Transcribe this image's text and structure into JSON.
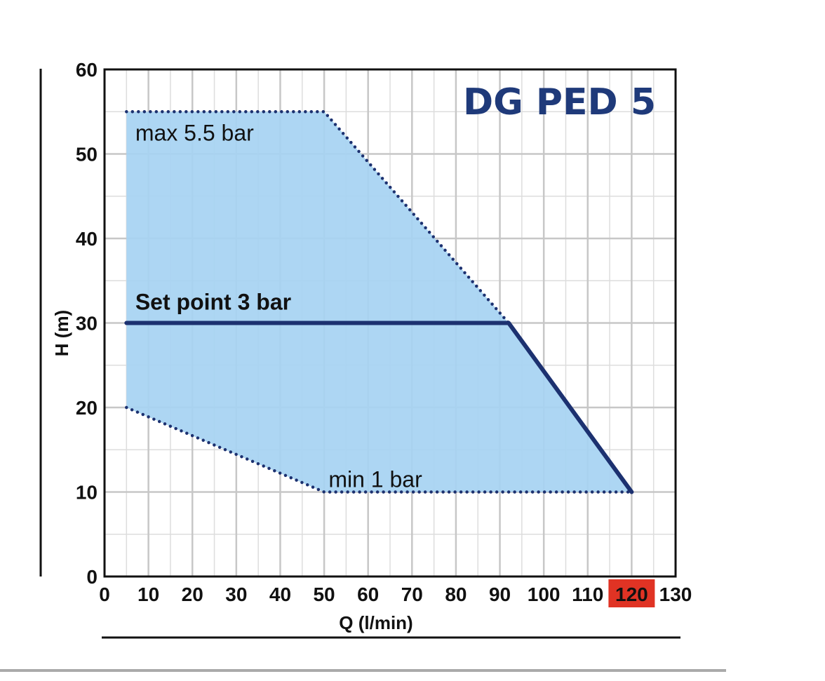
{
  "chart_data": {
    "type": "area",
    "title": "DG PED 5",
    "xlabel": "Q (l/min)",
    "ylabel": "H (m)",
    "xlim": [
      0,
      130
    ],
    "ylim": [
      0,
      60
    ],
    "x_ticks": [
      "0",
      "10",
      "20",
      "30",
      "40",
      "50",
      "60",
      "70",
      "80",
      "90",
      "100",
      "110",
      "120",
      "130"
    ],
    "y_ticks": [
      "0",
      "10",
      "20",
      "30",
      "40",
      "50",
      "60"
    ],
    "highlighted_x_tick": "120",
    "grid": true,
    "operating_area": {
      "polygon": [
        [
          5,
          55
        ],
        [
          50,
          55
        ],
        [
          92,
          30
        ],
        [
          120,
          10
        ],
        [
          50,
          10
        ],
        [
          5,
          20
        ]
      ]
    },
    "series": [
      {
        "name": "max 5.5 bar",
        "style": "dotted",
        "points": [
          [
            5,
            55
          ],
          [
            50,
            55
          ],
          [
            92,
            30
          ]
        ]
      },
      {
        "name": "min 1 bar",
        "style": "dotted",
        "points": [
          [
            5,
            20
          ],
          [
            50,
            10
          ],
          [
            120,
            10
          ]
        ]
      },
      {
        "name": "Set point 3 bar",
        "style": "solid",
        "points": [
          [
            5,
            30
          ],
          [
            92,
            30
          ],
          [
            120,
            10
          ]
        ]
      }
    ],
    "annotations": [
      {
        "text": "max 5.5 bar",
        "x": 7,
        "y": 52.5
      },
      {
        "text": "Set point 3 bar",
        "x": 7,
        "y": 32.5
      },
      {
        "text": "min 1 bar",
        "x": 51,
        "y": 11.5
      }
    ],
    "colors": {
      "area_fill": "#a6d3f2",
      "curve": "#1c3170",
      "title": "#1f3a7a",
      "grid": "#c7c7c7",
      "highlight_bg": "#e03324",
      "highlight_text": "#ffffff"
    }
  }
}
